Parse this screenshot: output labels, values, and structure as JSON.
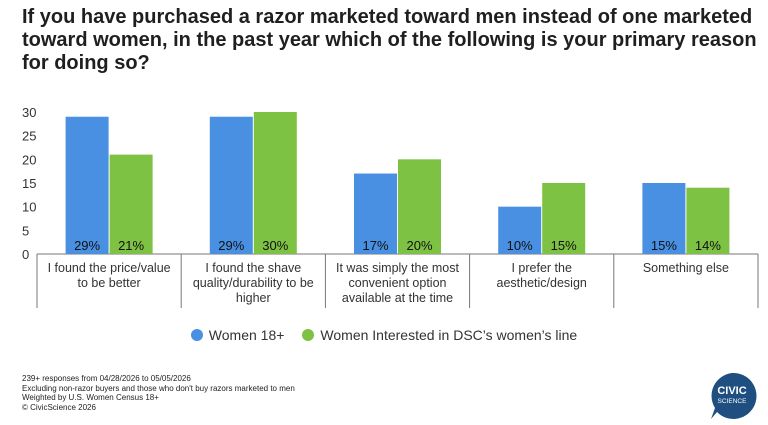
{
  "title": "If you have purchased a razor marketed toward men instead of one marketed toward women, in the past year which of the following is your primary reason for doing so?",
  "chart_data": {
    "type": "bar",
    "categories": [
      [
        "I found the price/value",
        "to be better"
      ],
      [
        "I found the shave",
        "quality/durability to be",
        "higher"
      ],
      [
        "It was simply the most",
        "convenient option",
        "available at the time"
      ],
      [
        "I prefer the",
        "aesthetic/design"
      ],
      [
        "Something else"
      ]
    ],
    "series": [
      {
        "name": "Women 18+",
        "color": "#4a90e2",
        "values": [
          29,
          29,
          17,
          10,
          15
        ],
        "labels": [
          "29%",
          "29%",
          "17%",
          "10%",
          "15%"
        ]
      },
      {
        "name": "Women Interested in DSC’s women’s line",
        "color": "#7dc242",
        "values": [
          21,
          30,
          20,
          15,
          14
        ],
        "labels": [
          "21%",
          "30%",
          "20%",
          "15%",
          "14%"
        ]
      }
    ],
    "y_ticks": [
      0,
      5,
      10,
      15,
      20,
      25,
      30
    ],
    "ylim": [
      0,
      30
    ],
    "grid": false,
    "legend_position": "bottom"
  },
  "footnotes": [
    "239+ responses from 04/28/2026 to 05/05/2026",
    "Excluding non-razor buyers and those who don't buy razors marketed to men",
    "Weighted by U.S. Women Census 18+",
    "© CivicScience 2026"
  ],
  "logo": {
    "line1": "CIVIC",
    "line2": "SCIENCE",
    "color": "#1e4f80"
  }
}
